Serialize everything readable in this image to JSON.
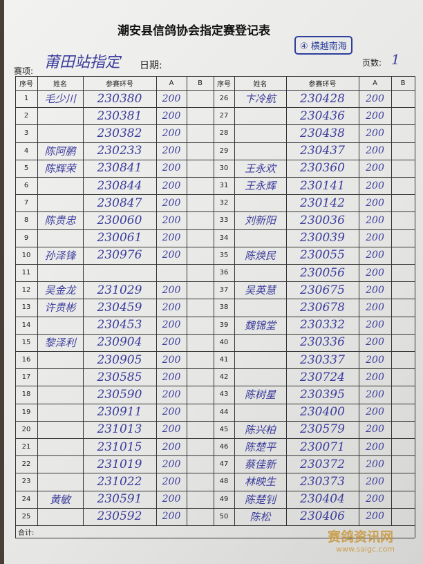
{
  "header": {
    "title": "潮安县信鸽协会指定赛登记表",
    "stamp": "④ 横越南海",
    "event_label": "赛项:",
    "event": "莆田站指定",
    "date_label": "日期:",
    "page_label": "页数:",
    "page": "1"
  },
  "table": {
    "columns": [
      "序号",
      "姓名",
      "参赛环号",
      "A",
      "B",
      "序号",
      "姓名",
      "参赛环号",
      "A",
      "B"
    ],
    "left_rows": [
      {
        "no": "1",
        "name": "毛少川",
        "ring": "230380",
        "a": "200"
      },
      {
        "no": "2",
        "ring": "230381",
        "a": "200"
      },
      {
        "no": "3",
        "ring": "230382",
        "a": "200"
      },
      {
        "no": "4",
        "name": "陈阿鹏",
        "ring": "230233",
        "a": "200"
      },
      {
        "no": "5",
        "name": "陈辉荣",
        "ring": "230841",
        "a": "200"
      },
      {
        "no": "6",
        "ring": "230844",
        "a": "200"
      },
      {
        "no": "7",
        "ring": "230847",
        "a": "200"
      },
      {
        "no": "8",
        "name": "陈贵忠",
        "ring": "230060",
        "a": "200"
      },
      {
        "no": "9",
        "ring": "230061",
        "a": "200"
      },
      {
        "no": "10",
        "name": "孙泽锋",
        "ring": "230976",
        "a": "200"
      },
      {
        "no": "11"
      },
      {
        "no": "12",
        "name": "吴金龙",
        "ring": "231029",
        "a": "200"
      },
      {
        "no": "13",
        "name": "许贵彬",
        "ring": "230459",
        "a": "200"
      },
      {
        "no": "14",
        "ring": "230453",
        "a": "200"
      },
      {
        "no": "15",
        "name": "黎泽利",
        "ring": "230904",
        "a": "200"
      },
      {
        "no": "16",
        "ring": "230905",
        "a": "200"
      },
      {
        "no": "17",
        "ring": "230585",
        "a": "200"
      },
      {
        "no": "18",
        "ring": "230590",
        "a": "200"
      },
      {
        "no": "19",
        "ring": "230911",
        "a": "200"
      },
      {
        "no": "20",
        "ring": "231013",
        "a": "200"
      },
      {
        "no": "21",
        "ring": "231015",
        "a": "200"
      },
      {
        "no": "22",
        "ring": "231019",
        "a": "200"
      },
      {
        "no": "23",
        "ring": "231022",
        "a": "200"
      },
      {
        "no": "24",
        "name": "黄敏",
        "ring": "230591",
        "a": "200"
      },
      {
        "no": "25",
        "ring": "230592",
        "a": "200"
      }
    ],
    "right_rows": [
      {
        "no": "26",
        "name": "卞冷航",
        "ring": "230428",
        "a": "200"
      },
      {
        "no": "27",
        "ring": "230436",
        "a": "200"
      },
      {
        "no": "28",
        "ring": "230438",
        "a": "200"
      },
      {
        "no": "29",
        "ring": "230437",
        "a": "200"
      },
      {
        "no": "30",
        "name": "王永欢",
        "ring": "230360",
        "a": "200"
      },
      {
        "no": "31",
        "name": "王永辉",
        "ring": "230141",
        "a": "200"
      },
      {
        "no": "32",
        "ring": "230142",
        "a": "200"
      },
      {
        "no": "33",
        "name": "刘新阳",
        "ring": "230036",
        "a": "200"
      },
      {
        "no": "34",
        "ring": "230039",
        "a": "200"
      },
      {
        "no": "35",
        "name": "陈焕民",
        "ring": "230055",
        "a": "200"
      },
      {
        "no": "36",
        "ring": "230056",
        "a": "200"
      },
      {
        "no": "37",
        "name": "吴英慧",
        "ring": "230675",
        "a": "200"
      },
      {
        "no": "38",
        "ring": "230678",
        "a": "200"
      },
      {
        "no": "39",
        "name": "魏锦堂",
        "ring": "230332",
        "a": "200"
      },
      {
        "no": "40",
        "ring": "230336",
        "a": "200"
      },
      {
        "no": "41",
        "ring": "230337",
        "a": "200"
      },
      {
        "no": "42",
        "ring": "230724",
        "a": "200"
      },
      {
        "no": "43",
        "name": "陈树星",
        "ring": "230395",
        "a": "200"
      },
      {
        "no": "44",
        "ring": "230400",
        "a": "200"
      },
      {
        "no": "45",
        "name": "陈兴柏",
        "ring": "230579",
        "a": "200"
      },
      {
        "no": "46",
        "name": "陈楚平",
        "ring": "230071",
        "a": "200"
      },
      {
        "no": "47",
        "name": "蔡佳新",
        "ring": "230372",
        "a": "200"
      },
      {
        "no": "48",
        "name": "林映生",
        "ring": "230373",
        "a": "200"
      },
      {
        "no": "49",
        "name": "陈楚钊",
        "ring": "230404",
        "a": "200"
      },
      {
        "no": "50",
        "name": "陈松",
        "ring": "230406",
        "a": "200"
      }
    ],
    "total_label": "合计:"
  },
  "watermark": {
    "site": "赛鸽资讯网",
    "url": "www.saigc.com"
  }
}
